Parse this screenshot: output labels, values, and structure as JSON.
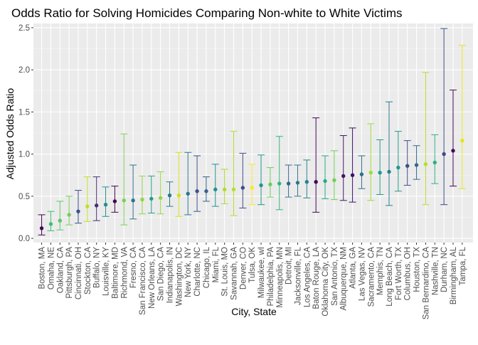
{
  "chart_data": {
    "type": "scatter",
    "title": "Odds Ratio for Solving Homicides Comparing Non-white to White Victims",
    "xlabel": "City, State",
    "ylabel": "Adjusted Odds Ratio",
    "ylim": [
      -0.05,
      2.55
    ],
    "yticks": [
      0.0,
      0.5,
      1.0,
      1.5,
      2.0,
      2.5
    ],
    "ytick_labels": [
      "0.0",
      "0.5",
      "1.0",
      "1.5",
      "2.0",
      "2.5"
    ],
    "grid": true,
    "legend": "none",
    "point_colors": "viridis gradient (varies by city, no legend)",
    "points": [
      {
        "city": "Boston, MA",
        "or": 0.12,
        "lo": 0.04,
        "hi": 0.28,
        "color": "#440154"
      },
      {
        "city": "Omaha, NE",
        "or": 0.17,
        "lo": 0.09,
        "hi": 0.32,
        "color": "#3ebc73"
      },
      {
        "city": "Oakland, CA",
        "or": 0.21,
        "lo": 0.1,
        "hi": 0.44,
        "color": "#5cc863"
      },
      {
        "city": "Pittsburgh, PA",
        "or": 0.28,
        "lo": 0.16,
        "hi": 0.5,
        "color": "#73d056"
      },
      {
        "city": "Cincinnati, OH",
        "or": 0.32,
        "lo": 0.18,
        "hi": 0.57,
        "color": "#3b528b"
      },
      {
        "city": "Stockton, CA",
        "or": 0.38,
        "lo": 0.2,
        "hi": 0.73,
        "color": "#c2df23"
      },
      {
        "city": "Buffalo, NY",
        "or": 0.39,
        "lo": 0.21,
        "hi": 0.73,
        "color": "#472d7b"
      },
      {
        "city": "Louisville, KY",
        "or": 0.4,
        "lo": 0.26,
        "hi": 0.61,
        "color": "#21918c"
      },
      {
        "city": "Baltimore, MD",
        "or": 0.44,
        "lo": 0.31,
        "hi": 0.62,
        "color": "#440154"
      },
      {
        "city": "Richmond, VA",
        "or": 0.45,
        "lo": 0.16,
        "hi": 1.24,
        "color": "#7ad151"
      },
      {
        "city": "Fresno, CA",
        "or": 0.45,
        "lo": 0.23,
        "hi": 0.87,
        "color": "#2c728e"
      },
      {
        "city": "San Francisco, CA",
        "or": 0.46,
        "lo": 0.29,
        "hi": 0.74,
        "color": "#8fd744"
      },
      {
        "city": "New Orleans, LA",
        "or": 0.47,
        "lo": 0.3,
        "hi": 0.74,
        "color": "#1fa088"
      },
      {
        "city": "San Diego, CA",
        "or": 0.48,
        "lo": 0.29,
        "hi": 0.79,
        "color": "#95d840"
      },
      {
        "city": "Indianapolis, IN",
        "or": 0.51,
        "lo": 0.38,
        "hi": 0.67,
        "color": "#287c8e"
      },
      {
        "city": "Washington, DC",
        "or": 0.51,
        "lo": 0.26,
        "hi": 1.02,
        "color": "#d2e21b"
      },
      {
        "city": "New York, NY",
        "or": 0.53,
        "lo": 0.28,
        "hi": 1.02,
        "color": "#2a788e"
      },
      {
        "city": "Charlotte, NC",
        "or": 0.56,
        "lo": 0.32,
        "hi": 0.98,
        "color": "#3b528b"
      },
      {
        "city": "Chicago, IL",
        "or": 0.56,
        "lo": 0.44,
        "hi": 0.73,
        "color": "#33638d"
      },
      {
        "city": "Miami, FL",
        "or": 0.58,
        "lo": 0.38,
        "hi": 0.88,
        "color": "#21918c"
      },
      {
        "city": "St. Louis, MO",
        "or": 0.58,
        "lo": 0.41,
        "hi": 0.82,
        "color": "#addc30"
      },
      {
        "city": "Savannah, GA",
        "or": 0.58,
        "lo": 0.27,
        "hi": 1.27,
        "color": "#b5de2b"
      },
      {
        "city": "Denver, CO",
        "or": 0.6,
        "lo": 0.36,
        "hi": 1.01,
        "color": "#3e4a89"
      },
      {
        "city": "Tulsa, OK",
        "or": 0.6,
        "lo": 0.4,
        "hi": 0.88,
        "color": "#fde725"
      },
      {
        "city": "Milwaukee, wI",
        "or": 0.63,
        "lo": 0.4,
        "hi": 0.99,
        "color": "#1f988b"
      },
      {
        "city": "Philadelphia, PA",
        "or": 0.64,
        "lo": 0.49,
        "hi": 0.84,
        "color": "#6ccd5a"
      },
      {
        "city": "Minneapolis, MN",
        "or": 0.65,
        "lo": 0.34,
        "hi": 1.21,
        "color": "#31b57b"
      },
      {
        "city": "Detroit, MI",
        "or": 0.65,
        "lo": 0.49,
        "hi": 0.87,
        "color": "#31688e"
      },
      {
        "city": "Jacksonville, FL",
        "or": 0.66,
        "lo": 0.5,
        "hi": 0.87,
        "color": "#2a788e"
      },
      {
        "city": "Los Angeles, CA",
        "or": 0.67,
        "lo": 0.48,
        "hi": 0.93,
        "color": "#26828e"
      },
      {
        "city": "Baton Rouge, LA",
        "or": 0.67,
        "lo": 0.31,
        "hi": 1.43,
        "color": "#440154"
      },
      {
        "city": "Oklahoma City, OK",
        "or": 0.68,
        "lo": 0.47,
        "hi": 0.98,
        "color": "#25ac82"
      },
      {
        "city": "San Antonio, TX",
        "or": 0.69,
        "lo": 0.46,
        "hi": 1.04,
        "color": "#71cf57"
      },
      {
        "city": "Albuquerque, NM",
        "or": 0.74,
        "lo": 0.45,
        "hi": 1.22,
        "color": "#471365"
      },
      {
        "city": "Atlanta, GA",
        "or": 0.75,
        "lo": 0.43,
        "hi": 1.31,
        "color": "#3b0f70"
      },
      {
        "city": "Las Vegas, NV",
        "or": 0.76,
        "lo": 0.59,
        "hi": 0.98,
        "color": "#2d718e"
      },
      {
        "city": "Sacramento, CA",
        "or": 0.78,
        "lo": 0.45,
        "hi": 1.36,
        "color": "#9fda3a"
      },
      {
        "city": "Memphis, TN",
        "or": 0.78,
        "lo": 0.52,
        "hi": 1.17,
        "color": "#1e9b8a"
      },
      {
        "city": "Long Beach, CA",
        "or": 0.79,
        "lo": 0.39,
        "hi": 1.62,
        "color": "#277f8e"
      },
      {
        "city": "Fort Worth, TX",
        "or": 0.84,
        "lo": 0.56,
        "hi": 1.27,
        "color": "#1f9a8a"
      },
      {
        "city": "Columbus, OH",
        "or": 0.86,
        "lo": 0.63,
        "hi": 1.16,
        "color": "#3e4c8a"
      },
      {
        "city": "Houston, TX",
        "or": 0.87,
        "lo": 0.7,
        "hi": 1.1,
        "color": "#31688e"
      },
      {
        "city": "San Bernardino, CA",
        "or": 0.88,
        "lo": 0.4,
        "hi": 1.97,
        "color": "#b8de29"
      },
      {
        "city": "Nashville, TN",
        "or": 0.9,
        "lo": 0.65,
        "hi": 1.23,
        "color": "#2db27d"
      },
      {
        "city": "Durham, NC",
        "or": 1.0,
        "lo": 0.4,
        "hi": 2.49,
        "color": "#3e4989"
      },
      {
        "city": "Birmingham, AL",
        "or": 1.04,
        "lo": 0.62,
        "hi": 1.76,
        "color": "#46085c"
      },
      {
        "city": "Tampa, FL",
        "or": 1.16,
        "lo": 0.59,
        "hi": 2.29,
        "color": "#e5e419"
      }
    ]
  }
}
